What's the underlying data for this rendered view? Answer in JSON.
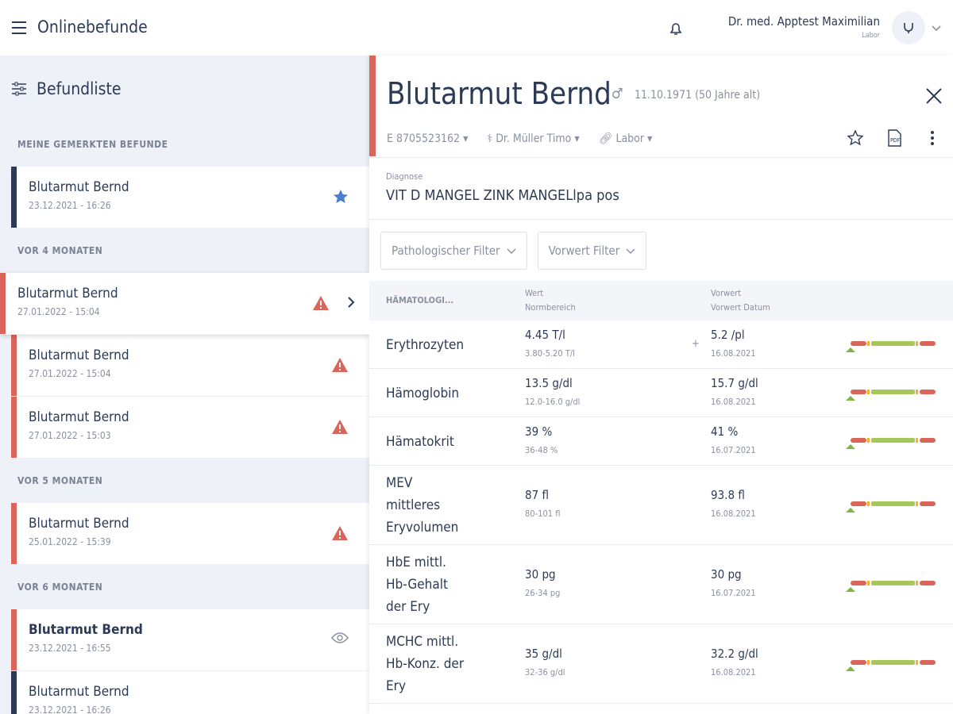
{
  "header": {
    "title": "Onlinebefunde",
    "user_name": "Dr. med. Apptest Maximilian",
    "user_role": "Labor"
  },
  "sidebar": {
    "title": "Befundliste",
    "groups": [
      {
        "label": "MEINE GEMERKTEN BEFUNDE",
        "items": [
          {
            "name": "Blutarmut Bernd",
            "date": "23.12.2021 - 16:26",
            "stripe": "#2c3a55",
            "icon": "star"
          }
        ]
      },
      {
        "label": "VOR 4 MONATEN",
        "items": [
          {
            "name": "Blutarmut Bernd",
            "date": "27.01.2022 - 15:04",
            "stripe": "#d9655b",
            "icon": "warning",
            "selected": true
          },
          {
            "name": "Blutarmut Bernd",
            "date": "27.01.2022 - 15:04",
            "stripe": "#d9655b",
            "icon": "warning"
          },
          {
            "name": "Blutarmut Bernd",
            "date": "27.01.2022 - 15:03",
            "stripe": "#d9655b",
            "icon": "warning"
          }
        ]
      },
      {
        "label": "VOR 5 MONATEN",
        "items": [
          {
            "name": "Blutarmut Bernd",
            "date": "25.01.2022 - 15:39",
            "stripe": "#d9655b",
            "icon": "warning"
          }
        ]
      },
      {
        "label": "VOR 6 MONATEN",
        "items": [
          {
            "name": "Blutarmut Bernd",
            "date": "23.12.2021 - 16:55",
            "stripe": "#d9655b",
            "icon": "eye",
            "bold": true
          },
          {
            "name": "Blutarmut Bernd",
            "date": "23.12.2021 - 16:26",
            "stripe": "#2c3a55",
            "icon": "none"
          }
        ]
      }
    ]
  },
  "detail": {
    "patient": "Blutarmut Bernd",
    "birth": "11.10.1971 (50 Jahre alt)",
    "case_id": "E 8705523162",
    "doctor": "Dr. Müller Timo",
    "tag": "Labor",
    "diagnosis_label": "Diagnose",
    "diagnosis": "VIT D MANGEL ZINK MANGELlpa pos",
    "filters": [
      "Pathologischer Filter",
      "Vorwert Filter"
    ],
    "table": {
      "section": "HÄMATOLOGI...",
      "value_header": "Wert",
      "range_header": "Normbereich",
      "prev_header": "Vorwert",
      "prev_date_header": "Vorwert Datum",
      "rows": [
        {
          "name": [
            "Erythrozyten"
          ],
          "value": "4.45 T/l",
          "range": "3.80-5.20 T/l",
          "trend": "+",
          "prev": "5.2 /pl",
          "prev_date": "16.08.2021"
        },
        {
          "name": [
            "Hämoglobin"
          ],
          "value": "13.5 g/dl",
          "range": "12.0-16.0 g/dl",
          "prev": "15.7 g/dl",
          "prev_date": "16.08.2021"
        },
        {
          "name": [
            "Hämatokrit"
          ],
          "value": "39 %",
          "range": "36-48 %",
          "prev": "41 %",
          "prev_date": "16.07.2021"
        },
        {
          "name": [
            "MEV",
            "mittleres",
            "Eryvolumen"
          ],
          "value": "87 fl",
          "range": "80-101 fl",
          "prev": "93.8 fl",
          "prev_date": "16.08.2021"
        },
        {
          "name": [
            "HbE mittl.",
            "Hb-Gehalt",
            "der Ery"
          ],
          "value": "30 pg",
          "range": "26-34 pg",
          "prev": "30 pg",
          "prev_date": "16.07.2021"
        },
        {
          "name": [
            "MCHC mittl.",
            "Hb-Konz. der",
            "Ery"
          ],
          "value": "35 g/dl",
          "range": "32-36 g/dl",
          "prev": "32.2 g/dl",
          "prev_date": "16.08.2021"
        }
      ]
    }
  }
}
